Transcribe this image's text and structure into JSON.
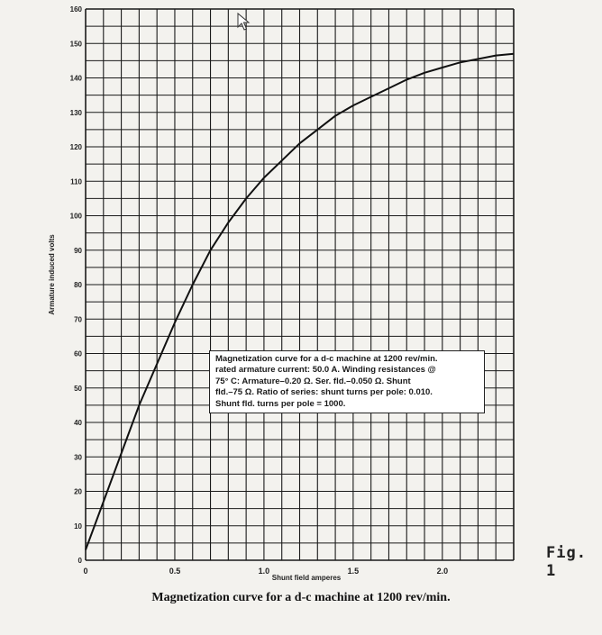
{
  "chart_data": {
    "type": "line",
    "title": "Magnetization curve for a d-c machine at 1200 rev/min.",
    "xlabel": "Shunt field amperes",
    "ylabel": "Armature induced volts",
    "xlim": [
      0,
      2.4
    ],
    "ylim": [
      0,
      160
    ],
    "x_ticks": [
      "0",
      "0.5",
      "1.0",
      "1.5",
      "2.0"
    ],
    "y_ticks": [
      "0",
      "10",
      "20",
      "30",
      "40",
      "50",
      "60",
      "70",
      "80",
      "90",
      "100",
      "110",
      "120",
      "130",
      "140",
      "150",
      "160"
    ],
    "grid": true,
    "series": [
      {
        "x": [
          0,
          0.1,
          0.2,
          0.3,
          0.4,
          0.5,
          0.6,
          0.7,
          0.8,
          0.9,
          1.0,
          1.1,
          1.2,
          1.3,
          1.4,
          1.5,
          1.6,
          1.7,
          1.8,
          1.9,
          2.0,
          2.1,
          2.2,
          2.3,
          2.4
        ],
        "y": [
          3,
          17,
          31,
          45,
          57,
          69,
          80,
          90,
          98,
          105,
          111,
          116,
          121,
          125,
          129,
          132,
          134.5,
          137,
          139.5,
          141.5,
          143,
          144.5,
          145.5,
          146.5,
          147
        ]
      }
    ],
    "annotation": [
      "Magnetization curve for a d-c machine at 1200 rev/min.",
      "rated armature current:  50.0 A.  Winding resistances @",
      "75° C:  Armature–0.20 Ω.  Ser. fld.–0.050 Ω.  Shunt",
      "fld.–75 Ω.  Ratio of series: shunt turns per pole:  0.010.",
      "Shunt fld. turns per pole = 1000."
    ]
  },
  "figure_label": "Fig. 1",
  "caption": "Magnetization curve for a d-c machine at 1200 rev/min.",
  "colors": {
    "grid": "#1a1a1a",
    "curve": "#111111",
    "background": "#f3f2ee"
  },
  "icons": [
    "mouse-cursor-icon"
  ]
}
